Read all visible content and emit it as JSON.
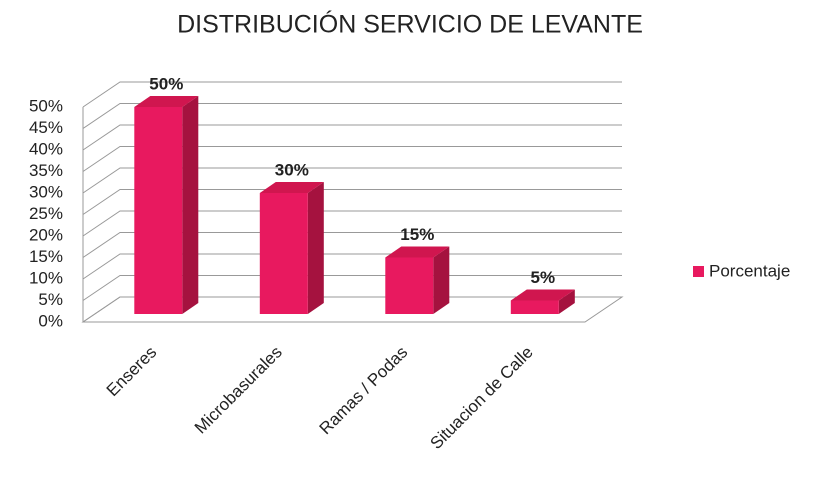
{
  "chart_data": {
    "type": "bar3d",
    "title": "DISTRIBUCIÓN SERVICIO DE LEVANTE",
    "categories": [
      "Enseres",
      "Microbasurales",
      "Ramas / Podas",
      "Situacion de Calle"
    ],
    "series": [
      {
        "name": "Porcentaje",
        "color": "#e8195f",
        "values": [
          50,
          30,
          15,
          5
        ],
        "value_labels": [
          "50%",
          "30%",
          "15%",
          "5%"
        ]
      }
    ],
    "ylim": [
      0,
      50
    ],
    "yticks": [
      {
        "value": 0,
        "label": "0%"
      },
      {
        "value": 5,
        "label": "5%"
      },
      {
        "value": 10,
        "label": "10%"
      },
      {
        "value": 15,
        "label": "15%"
      },
      {
        "value": 20,
        "label": "20%"
      },
      {
        "value": 25,
        "label": "25%"
      },
      {
        "value": 30,
        "label": "30%"
      },
      {
        "value": 35,
        "label": "35%"
      },
      {
        "value": 40,
        "label": "40%"
      },
      {
        "value": 45,
        "label": "45%"
      },
      {
        "value": 50,
        "label": "50%"
      }
    ],
    "grid": true,
    "legend": "right"
  }
}
